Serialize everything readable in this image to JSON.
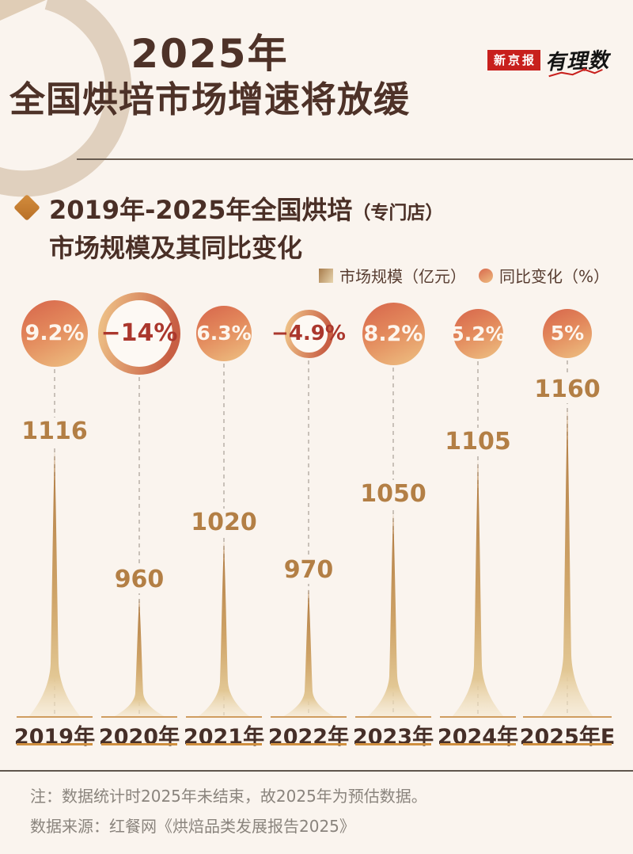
{
  "page": {
    "background": "#faf4ee"
  },
  "header": {
    "title_line1": "2025年",
    "title_line2": "全国烘培市场增速将放缓",
    "logo": {
      "badge": "新京报",
      "brand": "有理数",
      "badge_color": "#c8201d"
    }
  },
  "section": {
    "subtitle_line1": "2019年-2025年全国烘培",
    "subtitle_line1_small": "（专门店）",
    "subtitle_line2": "市场规模及其同比变化"
  },
  "legend": {
    "items": [
      {
        "icon": "bar-swatch",
        "label": "市场规模（亿元）"
      },
      {
        "icon": "circle-swatch",
        "label": "同比变化（%）"
      }
    ]
  },
  "chart_data": {
    "type": "bar",
    "subtype": "spike-columns-with-percent-bubbles",
    "categories": [
      "2019年",
      "2020年",
      "2021年",
      "2022年",
      "2023年",
      "2024年",
      "2025年E"
    ],
    "series": [
      {
        "name": "市场规模（亿元）",
        "values": [
          1116,
          960,
          1020,
          970,
          1050,
          1105,
          1160
        ]
      },
      {
        "name": "同比变化（%）",
        "values": [
          9.2,
          -14,
          6.3,
          -4.9,
          8.2,
          5.2,
          5
        ],
        "labels": [
          "9.2%",
          "−14%",
          "6.3%",
          "−4.9%",
          "8.2%",
          "5.2%",
          "5%"
        ]
      }
    ],
    "title": "2019年-2025年全国烘培（专门店）市场规模及其同比变化",
    "xlabel": "",
    "ylabel": "",
    "legend_position": "top-right",
    "grid": false,
    "notes": "负值以空心圆环表示，圆面积与同比变化幅度成正比",
    "colors": {
      "bubble_fill_gradient": [
        "#d8694d",
        "#eebc80"
      ],
      "ring_stroke_gradient": [
        "#eec187",
        "#c85f44"
      ],
      "bubble_text_positive": "#fdf6ee",
      "bubble_text_negative": "#ab372d",
      "spike_gradient": [
        "#b07a42",
        "#cfa468",
        "#f4e7cd"
      ],
      "value_label": "#b37f45",
      "year_label": "#462f28",
      "rule_top": "#cf9c5f",
      "rule_bottom": "#cf8f3f"
    }
  },
  "footer": {
    "note": "注：数据统计时2025年未结束，故2025年为预估数据。",
    "source": "数据来源：红餐网《烘焙品类发展报告2025》"
  }
}
